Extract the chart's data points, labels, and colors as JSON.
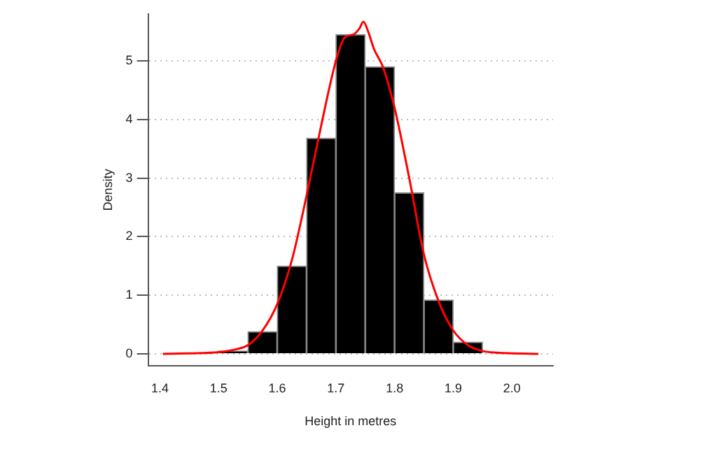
{
  "chart_data": {
    "type": "histogram",
    "xlabel": "Height in metres",
    "ylabel": "Density",
    "bins": [
      1.5,
      1.55,
      1.6,
      1.65,
      1.7,
      1.75,
      1.8,
      1.85,
      1.9,
      1.95
    ],
    "values": [
      0.05,
      0.38,
      1.5,
      3.68,
      5.45,
      4.9,
      2.75,
      0.92,
      0.2
    ],
    "color": "#000000",
    "series": [
      {
        "type": "line",
        "color": "#ff0000",
        "x": [
          1.405,
          1.45,
          1.5,
          1.53,
          1.55,
          1.575,
          1.6,
          1.625,
          1.65,
          1.675,
          1.7,
          1.715,
          1.73,
          1.74,
          1.747,
          1.755,
          1.765,
          1.78,
          1.8,
          1.825,
          1.85,
          1.875,
          1.9,
          1.925,
          1.95,
          1.975,
          2.0,
          2.045
        ],
        "values": [
          0,
          0.01,
          0.03,
          0.08,
          0.15,
          0.4,
          0.85,
          1.6,
          2.7,
          3.9,
          5.0,
          5.4,
          5.45,
          5.55,
          5.67,
          5.5,
          5.2,
          4.9,
          4.2,
          3.0,
          1.7,
          0.9,
          0.4,
          0.15,
          0.05,
          0.02,
          0.01,
          0
        ]
      }
    ],
    "xlim": [
      1.38,
      2.07
    ],
    "ylim": [
      -0.2,
      5.8
    ],
    "xticks": [
      1.4,
      1.5,
      1.6,
      1.7,
      1.8,
      1.9,
      {
        "value": 2,
        "label": "2.0"
      }
    ],
    "yticks": [
      0,
      1,
      2,
      3,
      4,
      5
    ],
    "grid": "y",
    "legend": false,
    "line_style": "solid",
    "marker": "none"
  }
}
